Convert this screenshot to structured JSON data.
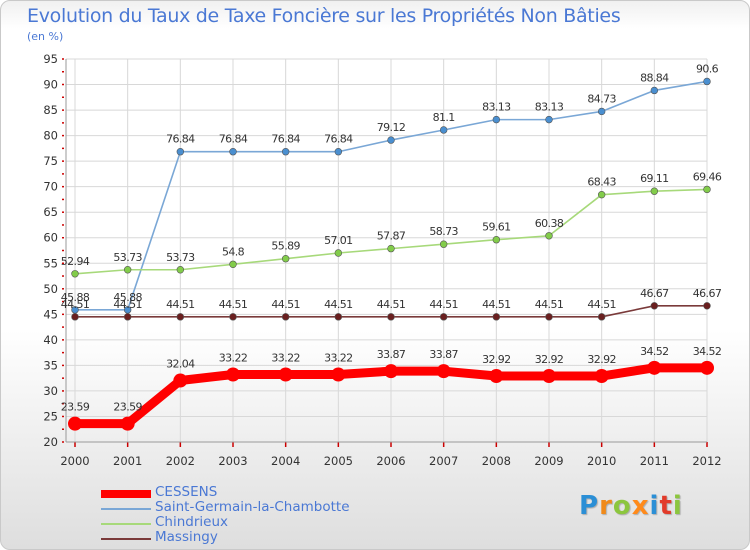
{
  "header": {
    "title": "Evolution du Taux de Taxe Foncière sur les Propriétés Non Bâties",
    "unit": "(en %)"
  },
  "colors": {
    "title": "#4a78d4",
    "grid": "#d8d8d8",
    "axis_ticks": "#cc0000"
  },
  "chart_data": {
    "type": "line",
    "title": "Evolution du Taux de Taxe Foncière sur les Propriétés Non Bâties",
    "ylabel": "(en %)",
    "xlabel": "",
    "ylim": [
      20,
      95
    ],
    "ytick_step": 5,
    "grid": true,
    "legend_position": "bottom-left",
    "x": [
      "2000",
      "2001",
      "2002",
      "2003",
      "2004",
      "2005",
      "2006",
      "2007",
      "2008",
      "2009",
      "2010",
      "2011",
      "2012"
    ],
    "series": [
      {
        "name": "CESSENS",
        "color": "#ff0000",
        "marker": "#ff0000",
        "emphasis": true,
        "values": [
          23.59,
          23.59,
          32.04,
          33.22,
          33.22,
          33.22,
          33.87,
          33.87,
          32.92,
          32.92,
          32.92,
          34.52,
          34.52
        ],
        "labels": [
          "23.59",
          "23.59",
          "32.04",
          "33.22",
          "33.22",
          "33.22",
          "33.87",
          "33.87",
          "32.92",
          "32.92",
          "32.92",
          "34.52",
          "34.52"
        ]
      },
      {
        "name": "Saint-Germain-la-Chambotte",
        "color": "#7aa7d6",
        "marker": "#4a8fd0",
        "emphasis": false,
        "values": [
          45.88,
          45.88,
          76.84,
          76.84,
          76.84,
          76.84,
          79.12,
          81.1,
          83.13,
          83.13,
          84.73,
          88.84,
          90.6
        ],
        "labels": [
          "45.88",
          "45.88",
          "76.84",
          "76.84",
          "76.84",
          "76.84",
          "79.12",
          "81.1",
          "83.13",
          "83.13",
          "84.73",
          "88.84",
          "90.6"
        ]
      },
      {
        "name": "Chindrieux",
        "color": "#a7d97a",
        "marker": "#82cc4a",
        "emphasis": false,
        "values": [
          52.94,
          53.73,
          53.73,
          54.8,
          55.89,
          57.01,
          57.87,
          58.73,
          59.61,
          60.38,
          68.43,
          69.11,
          69.46
        ],
        "labels": [
          "52.94",
          "53.73",
          "53.73",
          "54.8",
          "55.89",
          "57.01",
          "57.87",
          "58.73",
          "59.61",
          "60.38",
          "68.43",
          "69.11",
          "69.46"
        ]
      },
      {
        "name": "Massingy",
        "color": "#7a3a3a",
        "marker": "#6a1f1f",
        "emphasis": false,
        "values": [
          44.51,
          44.51,
          44.51,
          44.51,
          44.51,
          44.51,
          44.51,
          44.51,
          44.51,
          44.51,
          44.51,
          46.67,
          46.67
        ],
        "labels": [
          "44.51",
          "44.51",
          "44.51",
          "44.51",
          "44.51",
          "44.51",
          "44.51",
          "44.51",
          "44.51",
          "44.51",
          "44.51",
          "46.67",
          "46.67"
        ]
      }
    ]
  },
  "logo": {
    "text": "Proxiti",
    "letter_colors": [
      "#2b8fd6",
      "#f08a1a",
      "#8cc63e",
      "#ff8a1a",
      "#2b8fd6",
      "#e23b2a",
      "#8cc63e"
    ]
  }
}
